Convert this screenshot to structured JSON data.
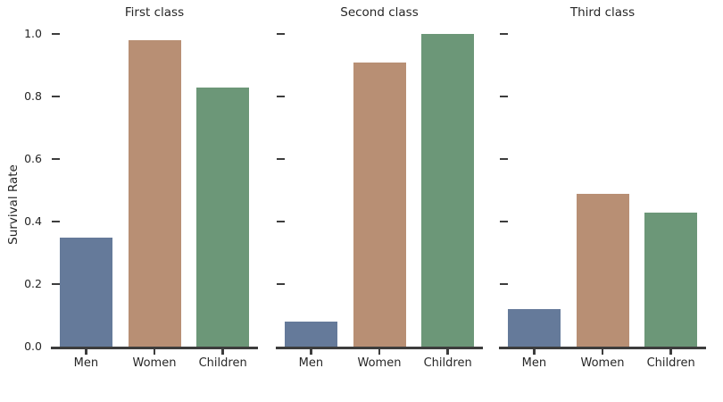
{
  "chart_data": {
    "type": "bar",
    "faceted": true,
    "categories": [
      "Men",
      "Women",
      "Children"
    ],
    "facets": [
      {
        "title": "First class",
        "values": [
          0.35,
          0.98,
          0.83
        ]
      },
      {
        "title": "Second class",
        "values": [
          0.08,
          0.91,
          1.0
        ]
      },
      {
        "title": "Third class",
        "values": [
          0.12,
          0.49,
          0.43
        ]
      }
    ],
    "ylabel": "Survival Rate",
    "xlabel": "",
    "yticks": [
      0.0,
      0.2,
      0.4,
      0.6,
      0.8,
      1.0
    ],
    "ylim": [
      0.0,
      1.0
    ],
    "grid": false,
    "legend_position": "none",
    "bar_colors": {
      "Men": "#657A9A",
      "Women": "#B88F74",
      "Children": "#6C9778"
    }
  },
  "colors": {
    "background": "#FFFFFF",
    "axis": "#3D3D3D",
    "text": "#262626"
  }
}
